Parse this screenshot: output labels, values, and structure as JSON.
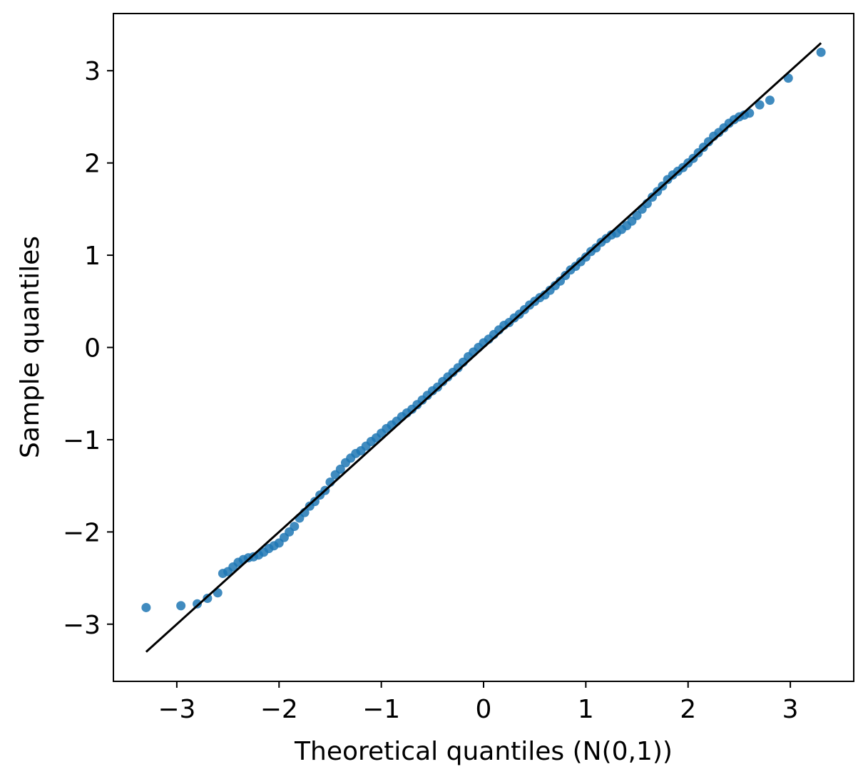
{
  "chart_data": {
    "type": "scatter",
    "title": "",
    "xlabel": "Theoretical quantiles (N(0,1))",
    "ylabel": "Sample quantiles",
    "xlim": [
      -3.62,
      3.62
    ],
    "ylim": [
      -3.62,
      3.62
    ],
    "xticks": [
      -3,
      -2,
      -1,
      0,
      1,
      2,
      3
    ],
    "yticks": [
      -3,
      -2,
      -1,
      0,
      1,
      2,
      3
    ],
    "xtick_labels": [
      "−3",
      "−2",
      "−1",
      "0",
      "1",
      "2",
      "3"
    ],
    "ytick_labels": [
      "−3",
      "−2",
      "−1",
      "0",
      "1",
      "2",
      "3"
    ],
    "grid": false,
    "point_color": "#1f77b4",
    "line_color": "#000000",
    "reference_line": {
      "x": [
        -3.3,
        3.3
      ],
      "y": [
        -3.3,
        3.3
      ]
    },
    "series": [
      {
        "x": [
          -3.3,
          -2.96,
          -2.8,
          -2.7,
          -2.6,
          -2.55,
          -2.5,
          -2.45,
          -2.4,
          -2.35,
          -2.3,
          -2.25,
          -2.2,
          -2.15,
          -2.1,
          -2.05,
          -2.0,
          -1.95,
          -1.9,
          -1.85,
          -1.8,
          -1.75,
          -1.7,
          -1.65,
          -1.6,
          -1.55,
          -1.5,
          -1.45,
          -1.4,
          -1.35,
          -1.3,
          -1.25,
          -1.2,
          -1.15,
          -1.1,
          -1.05,
          -1.0,
          -0.95,
          -0.9,
          -0.85,
          -0.8,
          -0.75,
          -0.7,
          -0.65,
          -0.6,
          -0.55,
          -0.5,
          -0.45,
          -0.4,
          -0.35,
          -0.3,
          -0.25,
          -0.2,
          -0.15,
          -0.1,
          -0.05,
          0.0,
          0.05,
          0.1,
          0.15,
          0.2,
          0.25,
          0.3,
          0.35,
          0.4,
          0.45,
          0.5,
          0.55,
          0.6,
          0.65,
          0.7,
          0.75,
          0.8,
          0.85,
          0.9,
          0.95,
          1.0,
          1.05,
          1.1,
          1.15,
          1.2,
          1.25,
          1.3,
          1.35,
          1.4,
          1.45,
          1.5,
          1.55,
          1.6,
          1.65,
          1.7,
          1.75,
          1.8,
          1.85,
          1.9,
          1.95,
          2.0,
          2.05,
          2.1,
          2.15,
          2.2,
          2.25,
          2.3,
          2.35,
          2.4,
          2.45,
          2.5,
          2.55,
          2.6,
          2.7,
          2.8,
          2.98,
          3.3
        ],
        "y": [
          -2.82,
          -2.8,
          -2.78,
          -2.72,
          -2.66,
          -2.45,
          -2.43,
          -2.38,
          -2.33,
          -2.3,
          -2.28,
          -2.27,
          -2.25,
          -2.22,
          -2.18,
          -2.15,
          -2.12,
          -2.06,
          -2.0,
          -1.94,
          -1.85,
          -1.79,
          -1.72,
          -1.67,
          -1.6,
          -1.55,
          -1.46,
          -1.38,
          -1.32,
          -1.25,
          -1.2,
          -1.15,
          -1.12,
          -1.07,
          -1.02,
          -0.98,
          -0.93,
          -0.88,
          -0.84,
          -0.8,
          -0.75,
          -0.71,
          -0.67,
          -0.62,
          -0.57,
          -0.52,
          -0.47,
          -0.43,
          -0.37,
          -0.32,
          -0.27,
          -0.22,
          -0.16,
          -0.1,
          -0.05,
          0.0,
          0.05,
          0.09,
          0.14,
          0.19,
          0.24,
          0.27,
          0.32,
          0.36,
          0.41,
          0.46,
          0.5,
          0.54,
          0.57,
          0.62,
          0.67,
          0.72,
          0.78,
          0.84,
          0.88,
          0.93,
          0.98,
          1.04,
          1.08,
          1.14,
          1.18,
          1.22,
          1.24,
          1.28,
          1.32,
          1.37,
          1.43,
          1.5,
          1.56,
          1.63,
          1.69,
          1.75,
          1.82,
          1.87,
          1.91,
          1.95,
          2.0,
          2.05,
          2.11,
          2.17,
          2.23,
          2.29,
          2.33,
          2.38,
          2.43,
          2.47,
          2.5,
          2.52,
          2.54,
          2.63,
          2.68,
          2.92,
          3.2
        ]
      }
    ]
  }
}
